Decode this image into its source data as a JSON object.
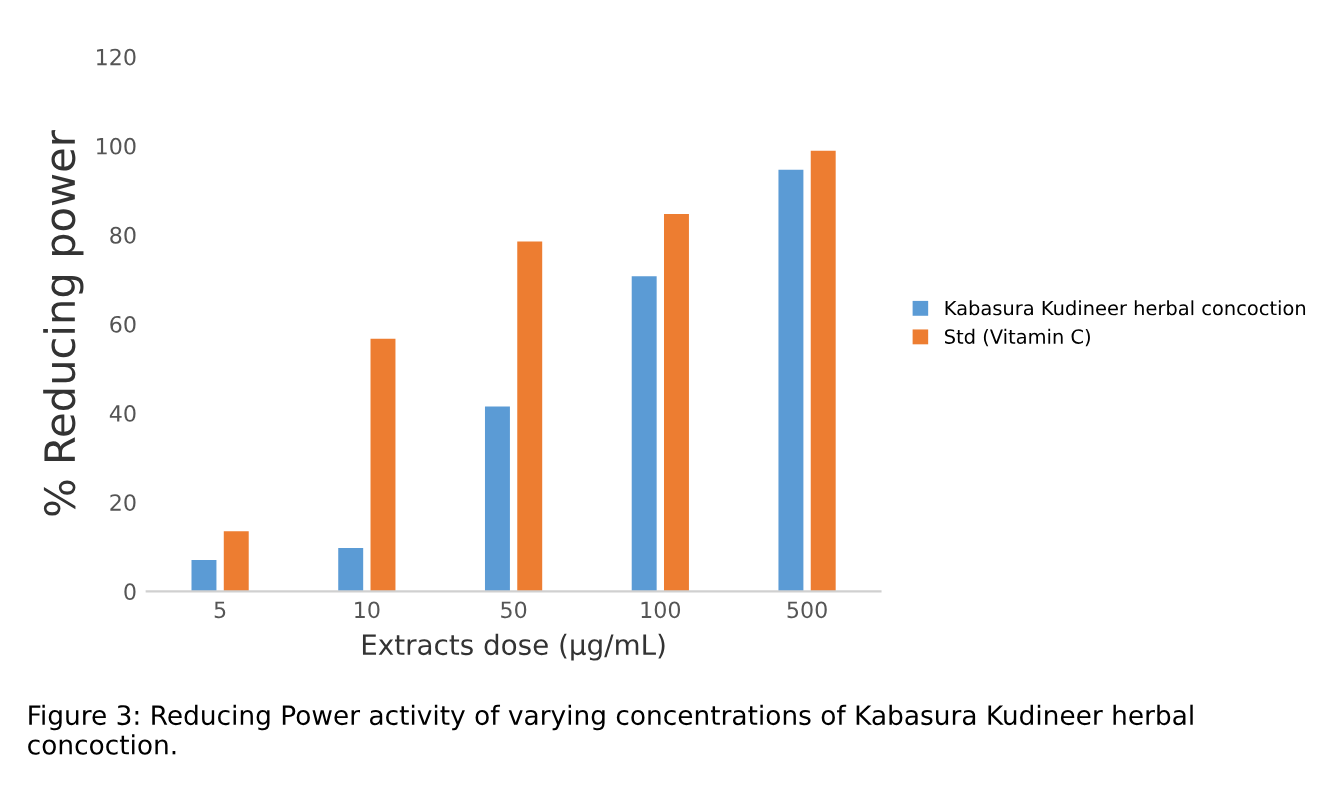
{
  "chart_data": {
    "type": "bar",
    "xlabel": "Extracts dose (µg/mL)",
    "ylabel": "% Reducing power",
    "categories": [
      "5",
      "10",
      "50",
      "100",
      "500"
    ],
    "series": [
      {
        "name": "Kabasura Kudineer herbal concoction",
        "color": "#5b9bd5",
        "values": [
          7,
          9.7,
          41.5,
          70.7,
          94.6
        ]
      },
      {
        "name": "Std (Vitamin C)",
        "color": "#ed7d31",
        "values": [
          13.5,
          56.7,
          78.5,
          84.7,
          98.9
        ]
      }
    ],
    "ylim": [
      0,
      120
    ],
    "yticks": [
      0,
      20,
      40,
      60,
      80,
      100,
      120
    ],
    "grid": false,
    "legend": "right",
    "annotations": [
      "Figure 3: Reducing Power activity of varying concentrations of Kabasura Kudineer herbal concoction."
    ]
  }
}
